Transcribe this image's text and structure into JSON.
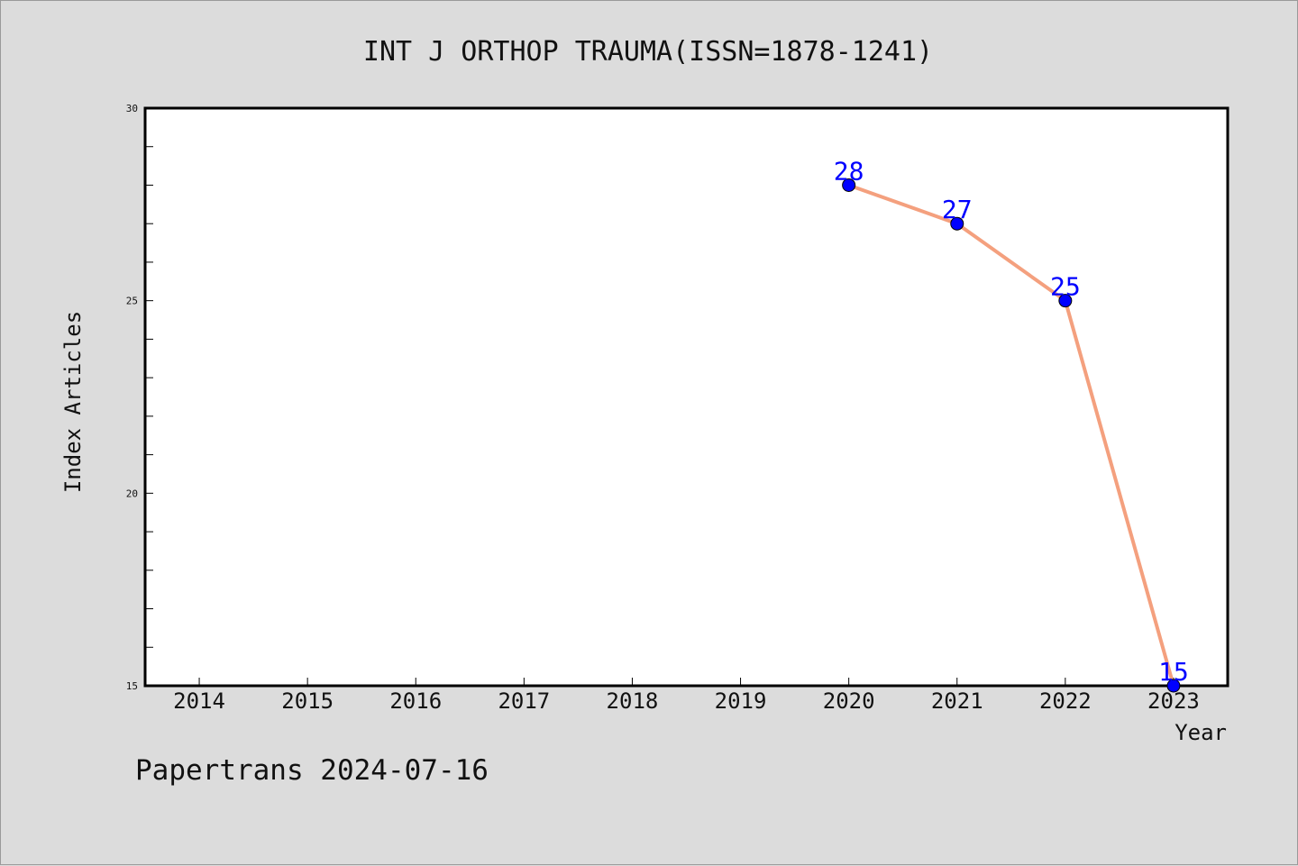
{
  "chart_data": {
    "type": "line",
    "title": "INT J ORTHOP TRAUMA(ISSN=1878-1241)",
    "xlabel": "Year",
    "ylabel": "Index Articles",
    "x_ticks": [
      "2014",
      "2015",
      "2016",
      "2017",
      "2018",
      "2019",
      "2020",
      "2021",
      "2022",
      "2023"
    ],
    "y_ticks": [
      "15",
      "20",
      "25",
      "30"
    ],
    "xlim": [
      2013.5,
      2023.5
    ],
    "ylim": [
      15,
      30
    ],
    "grid": false,
    "series": [
      {
        "x": [
          2020,
          2021,
          2022,
          2023
        ],
        "values": [
          28,
          27,
          25,
          15
        ],
        "labels": [
          "28",
          "27",
          "25",
          "15"
        ],
        "line_color": "#f4a07e",
        "marker_color": "#0000ff"
      }
    ]
  },
  "footer": "Papertrans 2024-07-16"
}
